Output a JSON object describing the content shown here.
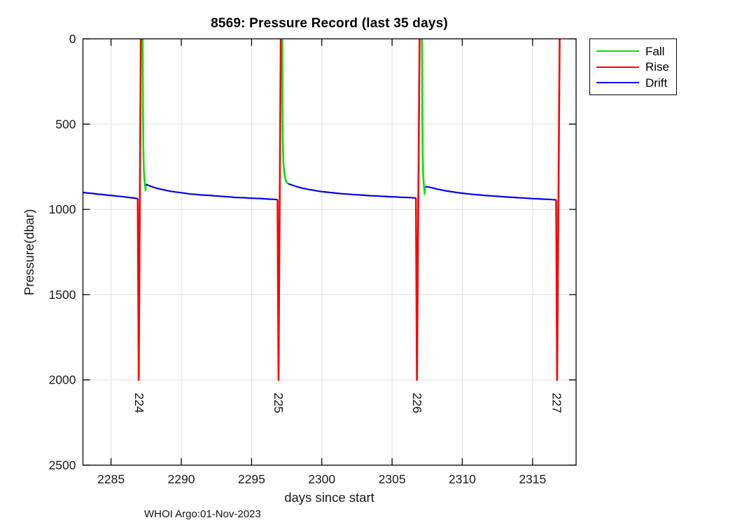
{
  "figure": {
    "footer": "WHOI Argo:01-Nov-2023"
  },
  "chart_data": {
    "type": "line",
    "title": "8569: Pressure Record (last 35 days)",
    "xlabel": "days since start",
    "ylabel": "Pressure(dbar)",
    "xlim": [
      2283,
      2318.1
    ],
    "ylim": [
      0,
      2500
    ],
    "y_axis_reversed": true,
    "grid": true,
    "grid_color": "#e0e0e0",
    "axis_color": "#000000",
    "xticks": [
      2285,
      2290,
      2295,
      2300,
      2305,
      2310,
      2315
    ],
    "yticks": [
      0,
      500,
      1000,
      1500,
      2000,
      2500
    ],
    "legend": {
      "position": "outside-top-right",
      "entries": [
        {
          "label": "Fall",
          "color": "#00e400"
        },
        {
          "label": "Rise",
          "color": "#ff0000"
        },
        {
          "label": "Drift",
          "color": "#0000f0"
        }
      ]
    },
    "profile_labels": [
      {
        "text": "224",
        "x": 2287.0,
        "y": 2075
      },
      {
        "text": "225",
        "x": 2296.92,
        "y": 2075
      },
      {
        "text": "226",
        "x": 2306.78,
        "y": 2075
      },
      {
        "text": "227",
        "x": 2316.72,
        "y": 2075
      }
    ],
    "series": [
      {
        "name": "Fall",
        "color": "#00e400",
        "width": 2.6,
        "segments": [
          [
            [
              2287.25,
              0
            ],
            [
              2287.27,
              380
            ],
            [
              2287.3,
              640
            ],
            [
              2287.33,
              760
            ],
            [
              2287.37,
              815
            ],
            [
              2287.41,
              850
            ],
            [
              2287.44,
              875
            ],
            [
              2287.45,
              888
            ],
            [
              2287.47,
              853
            ]
          ],
          [
            [
              2297.18,
              0
            ],
            [
              2297.2,
              380
            ],
            [
              2297.23,
              620
            ],
            [
              2297.27,
              730
            ],
            [
              2297.32,
              780
            ],
            [
              2297.38,
              812
            ],
            [
              2297.45,
              832
            ],
            [
              2297.52,
              843
            ],
            [
              2297.62,
              850
            ]
          ],
          [
            [
              2307.13,
              0
            ],
            [
              2307.15,
              400
            ],
            [
              2307.18,
              660
            ],
            [
              2307.21,
              780
            ],
            [
              2307.25,
              840
            ],
            [
              2307.29,
              880
            ],
            [
              2307.32,
              909
            ],
            [
              2307.38,
              866
            ]
          ]
        ]
      },
      {
        "name": "Rise",
        "color": "#ff0000",
        "width": 2.6,
        "segments": [
          [
            [
              2286.9,
              937
            ],
            [
              2286.97,
              2000
            ],
            [
              2287.12,
              0
            ]
          ],
          [
            [
              2296.85,
              943
            ],
            [
              2296.92,
              2000
            ],
            [
              2297.08,
              0
            ]
          ],
          [
            [
              2306.7,
              933
            ],
            [
              2306.77,
              2000
            ],
            [
              2306.96,
              0
            ]
          ],
          [
            [
              2316.68,
              944
            ],
            [
              2316.75,
              2000
            ],
            [
              2316.93,
              0
            ]
          ]
        ]
      },
      {
        "name": "Drift",
        "color": "#0000f0",
        "width": 2.2,
        "segments": [
          [
            [
              2283.0,
              901
            ],
            [
              2283.35,
              904
            ],
            [
              2283.7,
              907
            ],
            [
              2284.05,
              911
            ],
            [
              2284.4,
              913
            ],
            [
              2284.75,
              917
            ],
            [
              2285.1,
              919
            ],
            [
              2285.45,
              923
            ],
            [
              2285.8,
              925
            ],
            [
              2286.15,
              929
            ],
            [
              2286.45,
              932
            ],
            [
              2286.7,
              934
            ],
            [
              2286.9,
              937
            ]
          ],
          [
            [
              2287.47,
              853
            ],
            [
              2287.75,
              862
            ],
            [
              2288.05,
              871
            ],
            [
              2288.35,
              878
            ],
            [
              2288.65,
              884
            ],
            [
              2288.95,
              889
            ],
            [
              2289.25,
              894
            ],
            [
              2289.6,
              898
            ],
            [
              2289.95,
              902
            ],
            [
              2290.3,
              906
            ],
            [
              2290.65,
              910
            ],
            [
              2291.0,
              912
            ],
            [
              2291.35,
              915
            ],
            [
              2291.7,
              917
            ],
            [
              2292.05,
              918
            ],
            [
              2292.4,
              921
            ],
            [
              2292.75,
              923
            ],
            [
              2293.1,
              925
            ],
            [
              2293.45,
              927
            ],
            [
              2293.8,
              930
            ],
            [
              2294.15,
              931
            ],
            [
              2294.5,
              932
            ],
            [
              2294.85,
              934
            ],
            [
              2295.2,
              935
            ],
            [
              2295.55,
              936
            ],
            [
              2295.9,
              938
            ],
            [
              2296.25,
              940
            ],
            [
              2296.55,
              941
            ],
            [
              2296.85,
              943
            ]
          ],
          [
            [
              2297.62,
              850
            ],
            [
              2297.9,
              858
            ],
            [
              2298.2,
              866
            ],
            [
              2298.5,
              873
            ],
            [
              2298.8,
              879
            ],
            [
              2299.1,
              884
            ],
            [
              2299.4,
              888
            ],
            [
              2299.7,
              892
            ],
            [
              2300.0,
              896
            ],
            [
              2300.35,
              899
            ],
            [
              2300.7,
              902
            ],
            [
              2301.05,
              905
            ],
            [
              2301.4,
              908
            ],
            [
              2301.75,
              910
            ],
            [
              2302.1,
              912
            ],
            [
              2302.45,
              914
            ],
            [
              2302.8,
              916
            ],
            [
              2303.15,
              918
            ],
            [
              2303.5,
              920
            ],
            [
              2303.85,
              921
            ],
            [
              2304.2,
              923
            ],
            [
              2304.55,
              924
            ],
            [
              2304.9,
              926
            ],
            [
              2305.25,
              927
            ],
            [
              2305.6,
              929
            ],
            [
              2305.95,
              930
            ],
            [
              2306.3,
              931
            ],
            [
              2306.7,
              933
            ]
          ],
          [
            [
              2307.38,
              866
            ],
            [
              2307.6,
              869
            ],
            [
              2307.9,
              875
            ],
            [
              2308.2,
              881
            ],
            [
              2308.5,
              886
            ],
            [
              2308.8,
              891
            ],
            [
              2309.1,
              895
            ],
            [
              2309.45,
              899
            ],
            [
              2309.8,
              903
            ],
            [
              2310.15,
              907
            ],
            [
              2310.5,
              910
            ],
            [
              2310.85,
              913
            ],
            [
              2311.2,
              915
            ],
            [
              2311.55,
              918
            ],
            [
              2311.9,
              920
            ],
            [
              2312.25,
              922
            ],
            [
              2312.6,
              924
            ],
            [
              2312.95,
              926
            ],
            [
              2313.3,
              928
            ],
            [
              2313.65,
              930
            ],
            [
              2314.0,
              932
            ],
            [
              2314.35,
              933
            ],
            [
              2314.7,
              935
            ],
            [
              2315.05,
              937
            ],
            [
              2315.4,
              938
            ],
            [
              2315.75,
              940
            ],
            [
              2316.1,
              941
            ],
            [
              2316.4,
              943
            ],
            [
              2316.68,
              944
            ]
          ]
        ]
      }
    ]
  }
}
